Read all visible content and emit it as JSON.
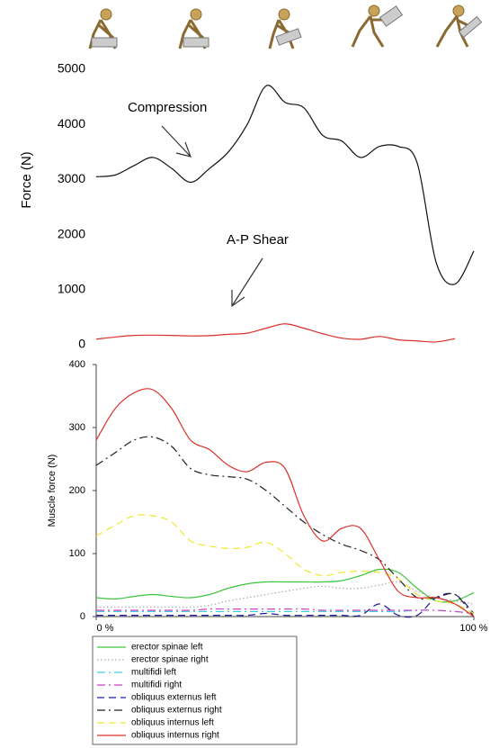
{
  "chart_data": [
    {
      "type": "line",
      "ylabel": "Force (N)",
      "x": [
        0,
        5,
        10,
        15,
        20,
        25,
        30,
        35,
        40,
        45,
        50,
        55,
        60,
        65,
        70,
        75,
        80,
        85,
        90,
        95,
        100
      ],
      "xlim": [
        0,
        100
      ],
      "ylim": [
        0,
        5000
      ],
      "yticks": [
        0,
        1000,
        2000,
        3000,
        4000,
        5000
      ],
      "axis_lines": false,
      "annotations": [
        "Compression",
        "A-P Shear"
      ],
      "series": [
        {
          "name": "Compression",
          "color": "#111111",
          "style": "solid",
          "values": [
            3050,
            3080,
            3250,
            3400,
            3200,
            2950,
            3200,
            3500,
            4000,
            4700,
            4400,
            4300,
            3800,
            3700,
            3400,
            3600,
            3600,
            3300,
            1500,
            1100,
            1700
          ]
        },
        {
          "name": "A-P Shear",
          "color": "#d9312b",
          "style": "solid",
          "values": [
            100,
            140,
            170,
            175,
            170,
            160,
            165,
            190,
            210,
            300,
            380,
            300,
            200,
            120,
            100,
            150,
            90,
            70,
            50,
            110,
            null
          ]
        }
      ]
    },
    {
      "type": "line",
      "ylabel": "Muscle force (N)",
      "x": [
        0,
        5,
        10,
        15,
        20,
        25,
        30,
        35,
        40,
        45,
        50,
        55,
        60,
        65,
        70,
        75,
        80,
        85,
        90,
        95,
        100
      ],
      "xlim": [
        0,
        100
      ],
      "xticks": [
        {
          "value": 0,
          "label": "0 %"
        },
        {
          "value": 100,
          "label": "100 %"
        }
      ],
      "ylim": [
        0,
        400
      ],
      "yticks": [
        0,
        100,
        200,
        300,
        400
      ],
      "axis_lines": true,
      "series": [
        {
          "name": "erector spinae left",
          "color": "#3cc43c",
          "style": "solid",
          "values": [
            30,
            28,
            32,
            35,
            32,
            30,
            35,
            45,
            52,
            55,
            55,
            55,
            55,
            57,
            65,
            75,
            70,
            45,
            25,
            25,
            38
          ]
        },
        {
          "name": "erector spinae right",
          "color": "#aaaaaa",
          "style": "dotted",
          "values": [
            15,
            15,
            15,
            15,
            15,
            15,
            18,
            25,
            30,
            35,
            40,
            45,
            48,
            45,
            45,
            50,
            55,
            40,
            30,
            25,
            20
          ]
        },
        {
          "name": "multifidi left",
          "color": "#3fd0e0",
          "style": "dashdot",
          "values": [
            8,
            8,
            8,
            8,
            8,
            8,
            8,
            8,
            8,
            8,
            8,
            8,
            8,
            8,
            8,
            8,
            8,
            10,
            10,
            8,
            5
          ]
        },
        {
          "name": "multifidi right",
          "color": "#d040c8",
          "style": "dashdot",
          "values": [
            10,
            10,
            10,
            10,
            10,
            10,
            12,
            12,
            12,
            12,
            12,
            12,
            10,
            10,
            10,
            10,
            10,
            10,
            10,
            8,
            5
          ]
        },
        {
          "name": "obliquus externus left",
          "color": "#1c1c9c",
          "style": "dashed",
          "values": [
            2,
            2,
            2,
            2,
            2,
            2,
            2,
            2,
            2,
            5,
            2,
            2,
            2,
            2,
            2,
            20,
            2,
            2,
            30,
            35,
            5
          ]
        },
        {
          "name": "obliquus externus right",
          "color": "#222222",
          "style": "dashdot",
          "values": [
            240,
            260,
            280,
            285,
            270,
            235,
            225,
            222,
            218,
            200,
            175,
            150,
            130,
            115,
            105,
            90,
            60,
            30,
            30,
            35,
            0
          ]
        },
        {
          "name": "obliquus internus left",
          "color": "#f0e830",
          "style": "dashed",
          "values": [
            128,
            145,
            160,
            160,
            150,
            120,
            112,
            108,
            110,
            118,
            100,
            75,
            65,
            70,
            72,
            70,
            60,
            35,
            25,
            20,
            5
          ]
        },
        {
          "name": "obliquus internus right",
          "color": "#d9312b",
          "style": "solid",
          "values": [
            280,
            330,
            355,
            360,
            330,
            280,
            265,
            240,
            230,
            245,
            235,
            160,
            120,
            140,
            140,
            90,
            40,
            30,
            30,
            20,
            0
          ]
        }
      ]
    }
  ]
}
